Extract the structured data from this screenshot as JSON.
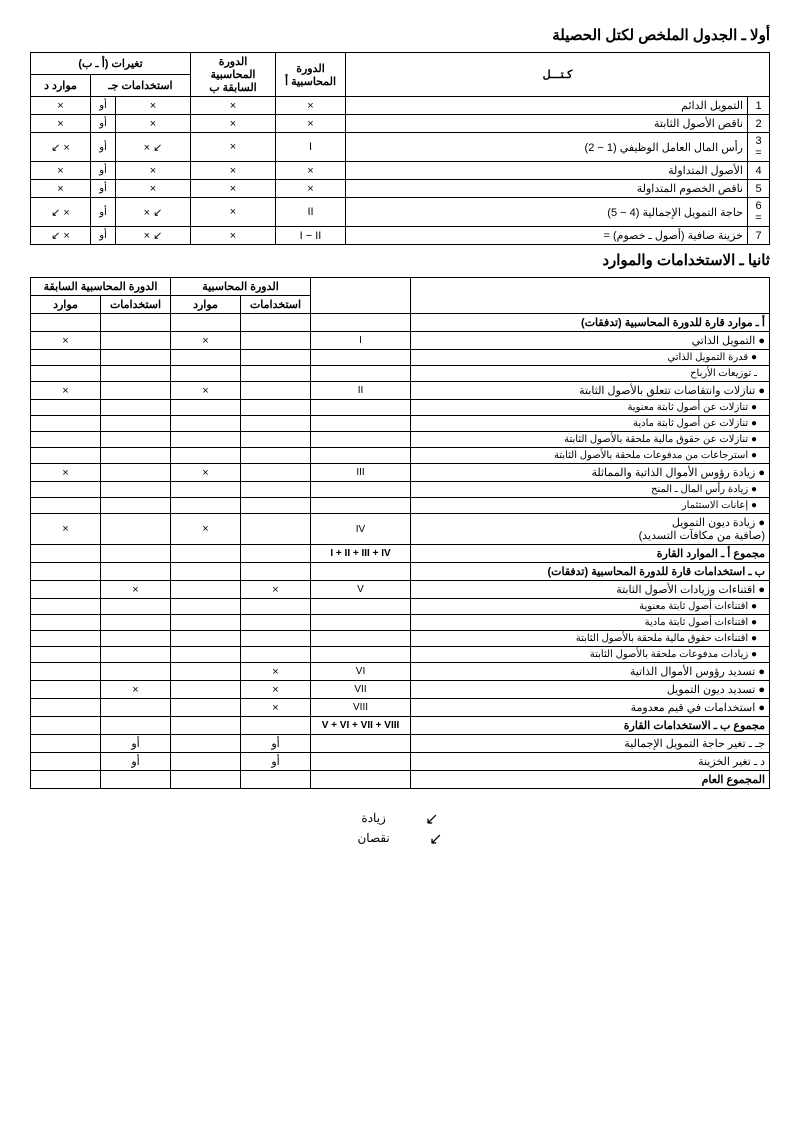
{
  "sections": {
    "first_title": "أولا ـ الجدول الملخص لكتل الحصيلة",
    "second_title": "ثانيا ـ الاستخدامات والموارد"
  },
  "table1": {
    "headers": {
      "main_label": "كـتـــل",
      "cycle_current": "الدورة المحاسبية أ",
      "cycle_prev": "الدورة المحاسبية السابقة ب",
      "changes": "تغيرات (أ ـ ب)",
      "uses": "استخدامات جـ",
      "resources": "موارد د"
    },
    "rows": [
      {
        "n": "1",
        "label": "التمويل الدائم",
        "a": "×",
        "b": "×",
        "c_or": "أو",
        "c": "×",
        "d_or": "",
        "d": "×"
      },
      {
        "n": "2",
        "label": "ناقص الأصول الثابتة",
        "a": "×",
        "b": "×",
        "c_or": "أو",
        "c": "×",
        "d_or": "",
        "d": "×"
      },
      {
        "n": "3 =",
        "label": "رأس المال العامل الوظيفي (1 − 2)",
        "a": "I",
        "b": "×",
        "c_or": "أو",
        "c": "↙ ×",
        "d_or": "",
        "d": "× ↙"
      },
      {
        "n": "4",
        "label": "الأصول المتداولة",
        "a": "×",
        "b": "×",
        "c_or": "أو",
        "c": "×",
        "d_or": "",
        "d": "×"
      },
      {
        "n": "5",
        "label": "ناقص الخصوم المتداولة",
        "a": "×",
        "b": "×",
        "c_or": "أو",
        "c": "×",
        "d_or": "",
        "d": "×"
      },
      {
        "n": "6 =",
        "label": "حاجة التمويل الإجمالية (4 − 5)",
        "a": "II",
        "b": "×",
        "c_or": "أو",
        "c": "↙ ×",
        "d_or": "",
        "d": "× ↙"
      },
      {
        "n": "7",
        "label": "خزينة صافية (أصول ـ خصوم) =",
        "a": "I − II",
        "b": "×",
        "c_or": "أو",
        "c": "↙ ×",
        "d_or": "",
        "d": "× ↙"
      }
    ]
  },
  "table2": {
    "headers": {
      "cycle_current": "الدورة المحاسبية",
      "cycle_prev": "الدورة المحاسبية السابقة",
      "uses": "استخدامات",
      "resources": "موارد"
    },
    "rows": [
      {
        "type": "section",
        "label": "أ ـ موارد قارة للدورة المحاسبية (تدفقات)",
        "code": "",
        "u1": "",
        "r1": "",
        "u2": "",
        "r2": ""
      },
      {
        "type": "head",
        "label": "● التمويل الذاتي",
        "code": "I",
        "u1": "",
        "r1": "×",
        "u2": "",
        "r2": "×"
      },
      {
        "type": "sub",
        "label": "● قدرة التمويل الذاتي",
        "code": "",
        "u1": "",
        "r1": "",
        "u2": "",
        "r2": ""
      },
      {
        "type": "sub",
        "label": "ـ توزيعات الأرباح",
        "code": "",
        "u1": "",
        "r1": "",
        "u2": "",
        "r2": ""
      },
      {
        "type": "head",
        "label": "● تنازلات وانتقاصات تتعلق بالأصول الثابتة",
        "code": "II",
        "u1": "",
        "r1": "×",
        "u2": "",
        "r2": "×"
      },
      {
        "type": "sub",
        "label": "● تنازلات عن أصول ثابتة معنوية",
        "code": "",
        "u1": "",
        "r1": "",
        "u2": "",
        "r2": ""
      },
      {
        "type": "sub",
        "label": "● تنازلات عن أصول ثابتة مادية",
        "code": "",
        "u1": "",
        "r1": "",
        "u2": "",
        "r2": ""
      },
      {
        "type": "sub",
        "label": "● تنازلات عن حقوق مالية ملحقة بالأصول الثابتة",
        "code": "",
        "u1": "",
        "r1": "",
        "u2": "",
        "r2": ""
      },
      {
        "type": "sub",
        "label": "● استرجاعات من مدفوعات ملحقة بالأصول الثابتة",
        "code": "",
        "u1": "",
        "r1": "",
        "u2": "",
        "r2": ""
      },
      {
        "type": "head",
        "label": "● زيادة رؤوس الأموال الذاتية والمماثلة",
        "code": "III",
        "u1": "",
        "r1": "×",
        "u2": "",
        "r2": "×"
      },
      {
        "type": "sub",
        "label": "● زيادة رأس المال ـ المنح",
        "code": "",
        "u1": "",
        "r1": "",
        "u2": "",
        "r2": ""
      },
      {
        "type": "sub",
        "label": "● إعانات الاستثمار",
        "code": "",
        "u1": "",
        "r1": "",
        "u2": "",
        "r2": ""
      },
      {
        "type": "head",
        "label": "● زيادة ديون التمويل\n(صافية من مكافآت التسديد)",
        "code": "IV",
        "u1": "",
        "r1": "×",
        "u2": "",
        "r2": "×"
      },
      {
        "type": "total",
        "label": "مجموع أ ـ الموارد القارة",
        "code": "I + II + III + IV",
        "u1": "",
        "r1": "",
        "u2": "",
        "r2": ""
      },
      {
        "type": "section",
        "label": "ب ـ استخدامات قارة للدورة المحاسبية (تدفقات)",
        "code": "",
        "u1": "",
        "r1": "",
        "u2": "",
        "r2": ""
      },
      {
        "type": "head",
        "label": "● اقتناءات وزيادات الأصول الثابتة",
        "code": "V",
        "u1": "×",
        "r1": "",
        "u2": "×",
        "r2": ""
      },
      {
        "type": "sub",
        "label": "● اقتناءات أصول ثابتة معنوية",
        "code": "",
        "u1": "",
        "r1": "",
        "u2": "",
        "r2": ""
      },
      {
        "type": "sub",
        "label": "● اقتناءات أصول ثابتة مادية",
        "code": "",
        "u1": "",
        "r1": "",
        "u2": "",
        "r2": ""
      },
      {
        "type": "sub",
        "label": "● اقتناءات حقوق مالية ملحقة بالأصول الثابتة",
        "code": "",
        "u1": "",
        "r1": "",
        "u2": "",
        "r2": ""
      },
      {
        "type": "sub",
        "label": "● زيادات مدفوعات ملحقة بالأصول الثابتة",
        "code": "",
        "u1": "",
        "r1": "",
        "u2": "",
        "r2": ""
      },
      {
        "type": "head",
        "label": "● تسديد رؤوس الأموال الذاتية",
        "code": "VI",
        "u1": "×",
        "r1": "",
        "u2": "",
        "r2": ""
      },
      {
        "type": "head",
        "label": "● تسديد ديون التمويل",
        "code": "VII",
        "u1": "×",
        "r1": "",
        "u2": "×",
        "r2": ""
      },
      {
        "type": "head",
        "label": "● استخدامات في قيم معدومة",
        "code": "VIII",
        "u1": "×",
        "r1": "",
        "u2": "",
        "r2": ""
      },
      {
        "type": "total",
        "label": "مجموع ب ـ الاستخدامات القارة",
        "code": "V + VI + VII + VIII",
        "u1": "",
        "r1": "",
        "u2": "",
        "r2": ""
      },
      {
        "type": "head",
        "label": "جـ ـ تغير حاجة التمويل الإجمالية",
        "code": "",
        "u1": "أو",
        "r1": "",
        "u2": "أو",
        "r2": ""
      },
      {
        "type": "head",
        "label": "د ـ تغير الخزينة",
        "code": "",
        "u1": "أو",
        "r1": "",
        "u2": "أو",
        "r2": ""
      },
      {
        "type": "total",
        "label": "المجموع العام",
        "code": "",
        "u1": "",
        "r1": "",
        "u2": "",
        "r2": ""
      }
    ]
  },
  "legend": {
    "increase": "زيادة",
    "decrease": "نقصان",
    "arrow": "↙"
  }
}
